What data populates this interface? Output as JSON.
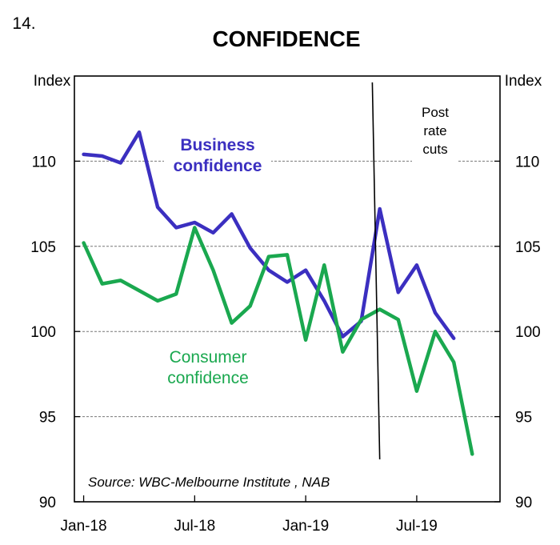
{
  "chart_data": {
    "type": "line",
    "figure_number": "14.",
    "title": "CONFIDENCE",
    "left_axis_label": "Index",
    "right_axis_label": "Index",
    "ylim": [
      90,
      115
    ],
    "yticks": [
      90,
      95,
      100,
      105,
      110
    ],
    "x_tick_labels": [
      "Jan-18",
      "Jul-18",
      "Jan-19",
      "Jul-19"
    ],
    "x_tick_index": [
      0,
      6,
      12,
      18
    ],
    "xlim": [
      -0.5,
      22.5
    ],
    "grid": true,
    "annotation": {
      "label_lines": [
        "Post",
        "rate",
        "cuts"
      ],
      "x_top": 15.6,
      "x_bottom": 16.0
    },
    "source": "Source: WBC-Melbourne Institute , NAB",
    "series": [
      {
        "name": "Business confidence",
        "label_lines": [
          "Business",
          "confidence"
        ],
        "color": "#3b2fc0",
        "x": [
          0,
          1,
          2,
          3,
          4,
          5,
          6,
          7,
          8,
          9,
          10,
          11,
          12,
          13,
          14,
          15,
          16,
          17,
          18,
          19,
          20
        ],
        "values": [
          110.4,
          110.3,
          109.9,
          111.7,
          107.3,
          106.1,
          106.4,
          105.8,
          106.9,
          104.9,
          103.6,
          102.9,
          103.6,
          101.8,
          99.7,
          100.6,
          107.2,
          102.3,
          103.9,
          101.1,
          99.6
        ]
      },
      {
        "name": "Consumer confidence",
        "label_lines": [
          "Consumer",
          "confidence"
        ],
        "color": "#1aa84f",
        "x": [
          0,
          1,
          2,
          3,
          4,
          5,
          6,
          7,
          8,
          9,
          10,
          11,
          12,
          13,
          14,
          15,
          16,
          17,
          18,
          19,
          20,
          21
        ],
        "values": [
          105.2,
          102.8,
          103.0,
          102.4,
          101.8,
          102.2,
          106.1,
          103.6,
          100.5,
          101.5,
          104.4,
          104.5,
          99.5,
          103.9,
          98.8,
          100.7,
          101.3,
          100.7,
          96.5,
          100.0,
          98.2,
          92.8
        ]
      }
    ]
  }
}
